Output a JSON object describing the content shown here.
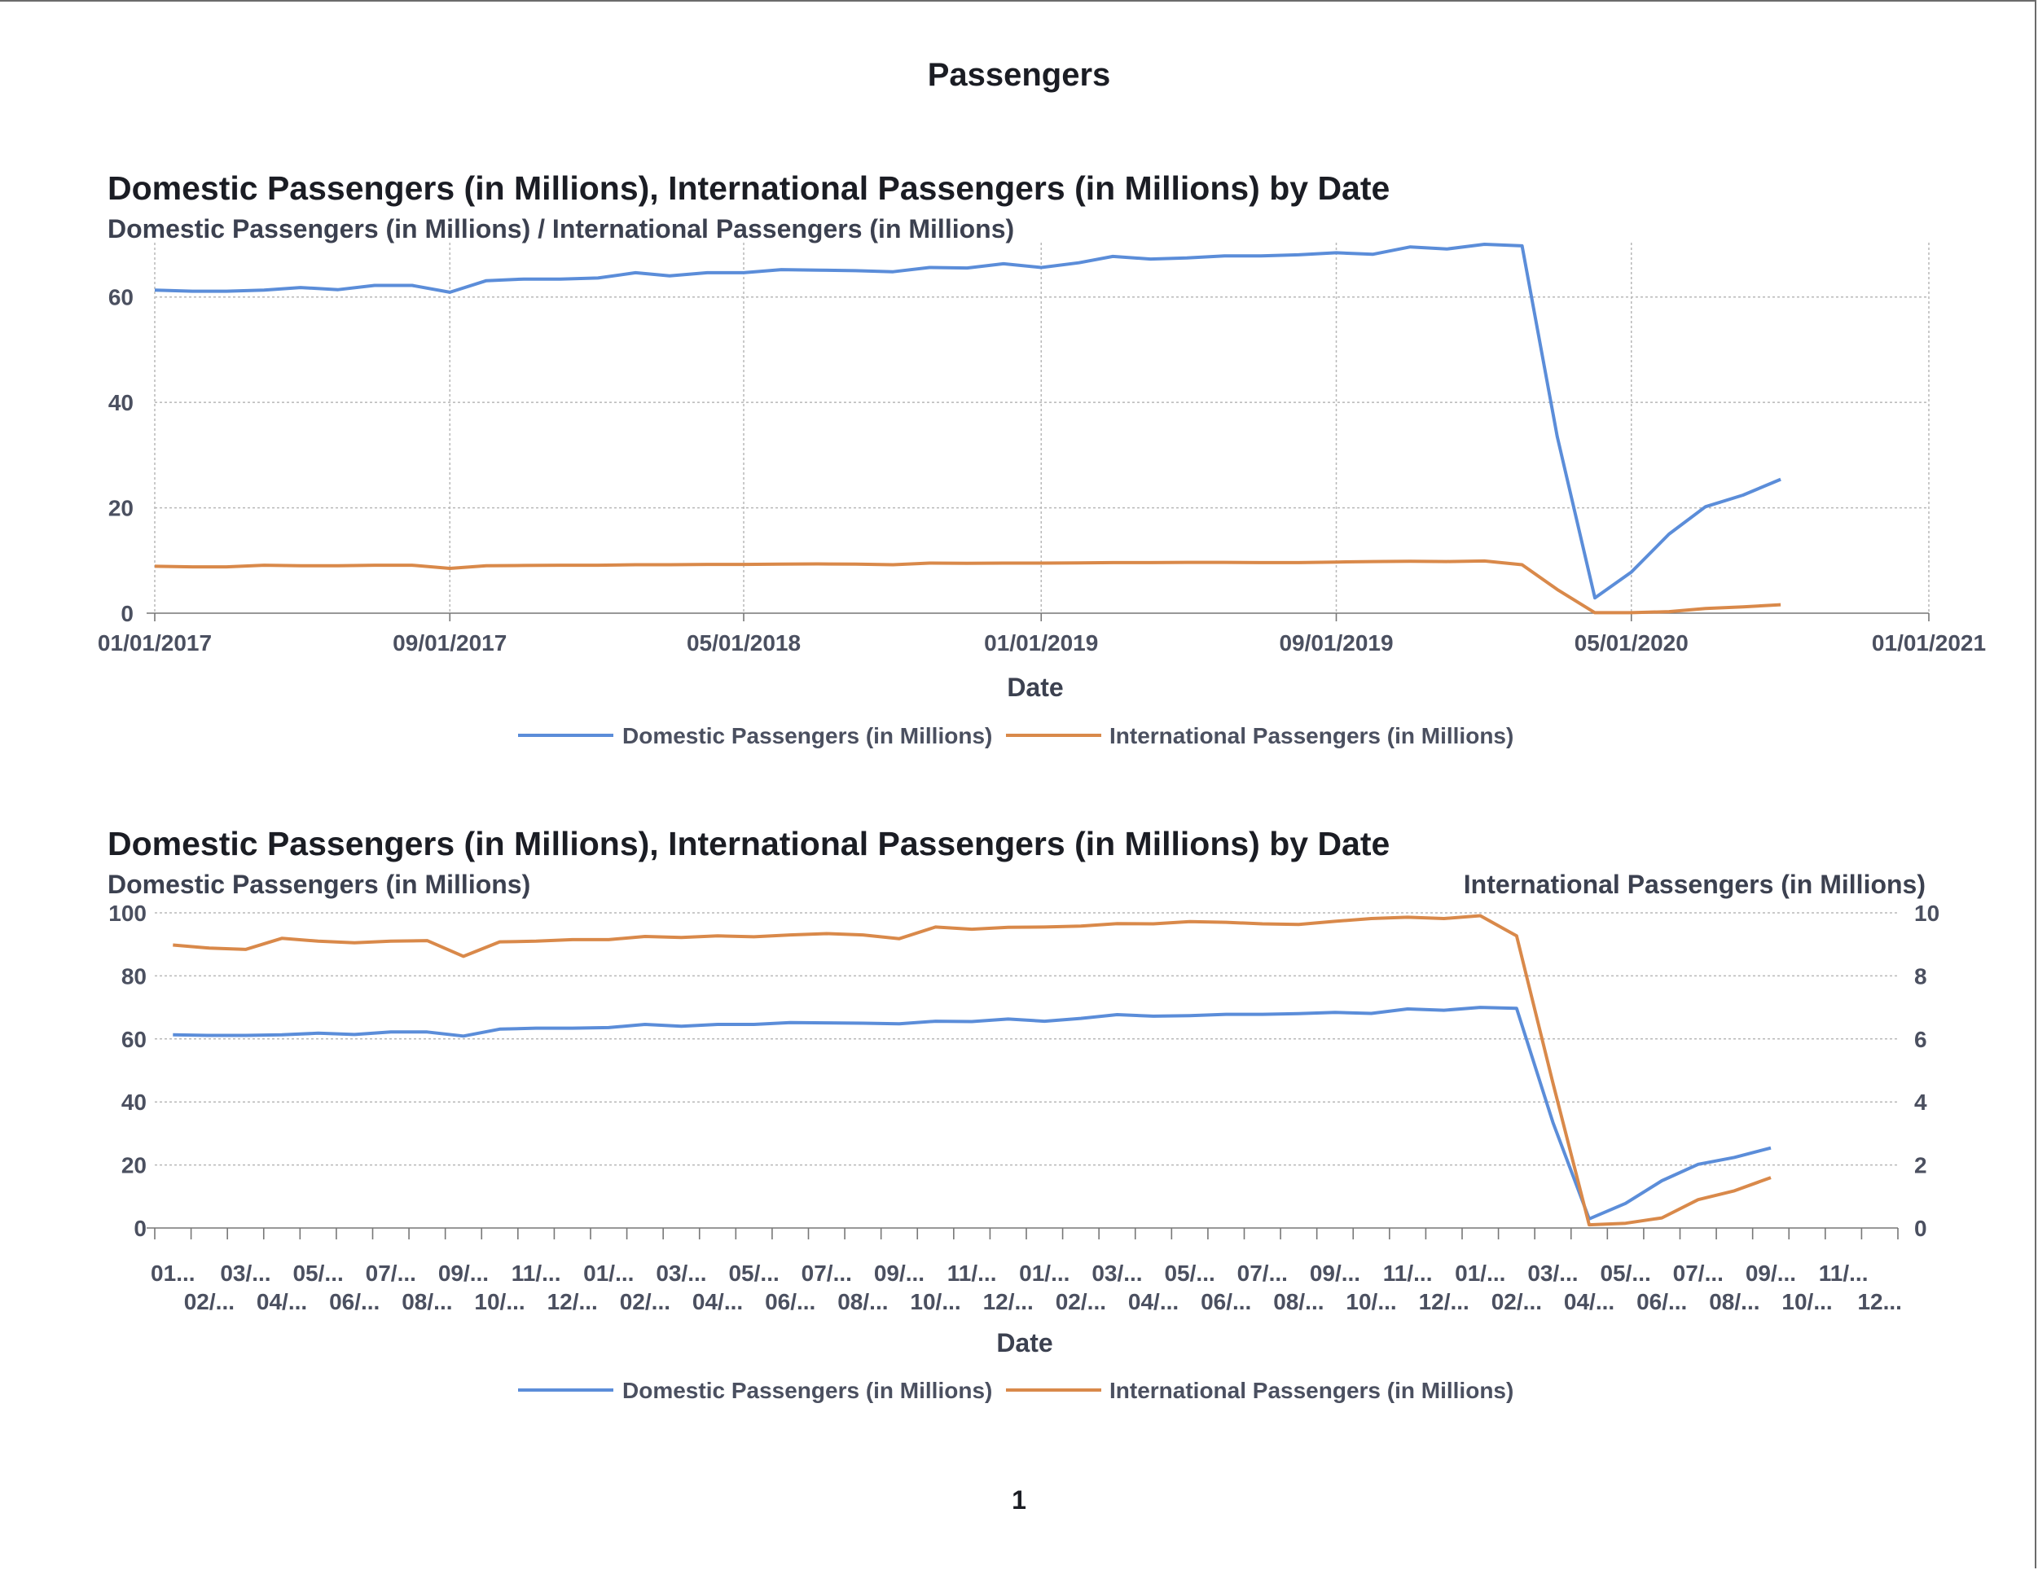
{
  "report": {
    "title": "Passengers",
    "page_number": "1"
  },
  "colors": {
    "domestic": "#5b8dd9",
    "international": "#d9894a"
  },
  "chart_data": [
    {
      "type": "line",
      "title": "Domestic Passengers (in Millions), International Passengers (in Millions) by Date",
      "ylabel": "Domestic Passengers (in Millions) / International Passengers (in Millions)",
      "xlabel": "Date",
      "ylim": [
        0,
        70
      ],
      "yticks": [
        0,
        20,
        40,
        60
      ],
      "xaxis_range": [
        "2017-01-01",
        "2021-01-01"
      ],
      "xtick_labels": [
        "01/01/2017",
        "09/01/2017",
        "05/01/2018",
        "01/01/2019",
        "09/01/2019",
        "05/01/2020",
        "01/01/2021"
      ],
      "grid": true,
      "legend_position": "bottom",
      "series": [
        {
          "name": "Domestic Passengers (in Millions)",
          "values": [
            61.3,
            61.1,
            61.1,
            61.3,
            61.8,
            61.4,
            62.2,
            62.2,
            60.9,
            63.1,
            63.4,
            63.4,
            63.6,
            64.6,
            64.0,
            64.6,
            64.6,
            65.2,
            65.1,
            65.0,
            64.8,
            65.6,
            65.5,
            66.3,
            65.6,
            66.5,
            67.7,
            67.2,
            67.4,
            67.8,
            67.8,
            68.0,
            68.4,
            68.1,
            69.5,
            69.1,
            70.0,
            69.7,
            33.5,
            2.9,
            7.8,
            15.0,
            20.2,
            22.4,
            25.4
          ]
        },
        {
          "name": "International Passengers (in Millions)",
          "values": [
            8.9,
            8.8,
            8.8,
            9.1,
            9.0,
            9.0,
            9.1,
            9.1,
            8.5,
            9.0,
            9.05,
            9.1,
            9.1,
            9.2,
            9.2,
            9.25,
            9.25,
            9.3,
            9.35,
            9.3,
            9.2,
            9.5,
            9.45,
            9.5,
            9.5,
            9.55,
            9.6,
            9.6,
            9.65,
            9.65,
            9.6,
            9.6,
            9.7,
            9.8,
            9.85,
            9.8,
            9.9,
            9.2,
            4.5,
            0.1,
            0.1,
            0.3,
            0.9,
            1.2,
            1.6
          ]
        }
      ]
    },
    {
      "type": "line",
      "title": "Domestic Passengers (in Millions), International Passengers (in Millions) by Date",
      "ylabel": "Domestic Passengers (in Millions)",
      "y2label": "International Passengers (in Millions)",
      "xlabel": "Date",
      "ylim": [
        0,
        100
      ],
      "y2lim": [
        0,
        10
      ],
      "yticks": [
        0,
        20,
        40,
        60,
        80,
        100
      ],
      "y2ticks": [
        0,
        2,
        4,
        6,
        8,
        10
      ],
      "xtick_labels_row1": [
        "01...",
        "03/...",
        "05/...",
        "07/...",
        "09/...",
        "11/...",
        "01/...",
        "03/...",
        "05/...",
        "07/...",
        "09/...",
        "11/...",
        "01/...",
        "03/...",
        "05/...",
        "07/...",
        "09/...",
        "11/...",
        "01/...",
        "03/...",
        "05/...",
        "07/...",
        "09/...",
        "11/..."
      ],
      "xtick_labels_row2": [
        "02/...",
        "04/...",
        "06/...",
        "08/...",
        "10/...",
        "12/...",
        "02/...",
        "04/...",
        "06/...",
        "08/...",
        "10/...",
        "12/...",
        "02/...",
        "04/...",
        "06/...",
        "08/...",
        "10/...",
        "12/...",
        "02/...",
        "04/...",
        "06/...",
        "08/...",
        "10/...",
        "12..."
      ],
      "grid": true,
      "legend_position": "bottom",
      "series": [
        {
          "name": "Domestic Passengers (in Millions)",
          "axis": "left",
          "values": [
            61.3,
            61.1,
            61.1,
            61.3,
            61.8,
            61.4,
            62.2,
            62.2,
            60.9,
            63.1,
            63.4,
            63.4,
            63.6,
            64.6,
            64.0,
            64.6,
            64.6,
            65.2,
            65.1,
            65.0,
            64.8,
            65.6,
            65.5,
            66.3,
            65.6,
            66.5,
            67.7,
            67.2,
            67.4,
            67.8,
            67.8,
            68.0,
            68.4,
            68.1,
            69.5,
            69.1,
            70.0,
            69.7,
            33.5,
            2.9,
            7.8,
            15.0,
            20.2,
            22.4,
            25.4
          ]
        },
        {
          "name": "International Passengers (in Millions)",
          "axis": "right",
          "values": [
            8.98,
            8.88,
            8.84,
            9.19,
            9.1,
            9.05,
            9.1,
            9.12,
            8.62,
            9.08,
            9.1,
            9.15,
            9.15,
            9.25,
            9.22,
            9.27,
            9.24,
            9.3,
            9.34,
            9.3,
            9.18,
            9.55,
            9.48,
            9.54,
            9.55,
            9.58,
            9.66,
            9.65,
            9.72,
            9.7,
            9.65,
            9.63,
            9.73,
            9.82,
            9.86,
            9.82,
            9.91,
            9.27,
            4.6,
            0.1,
            0.15,
            0.32,
            0.9,
            1.18,
            1.6
          ]
        }
      ]
    }
  ]
}
